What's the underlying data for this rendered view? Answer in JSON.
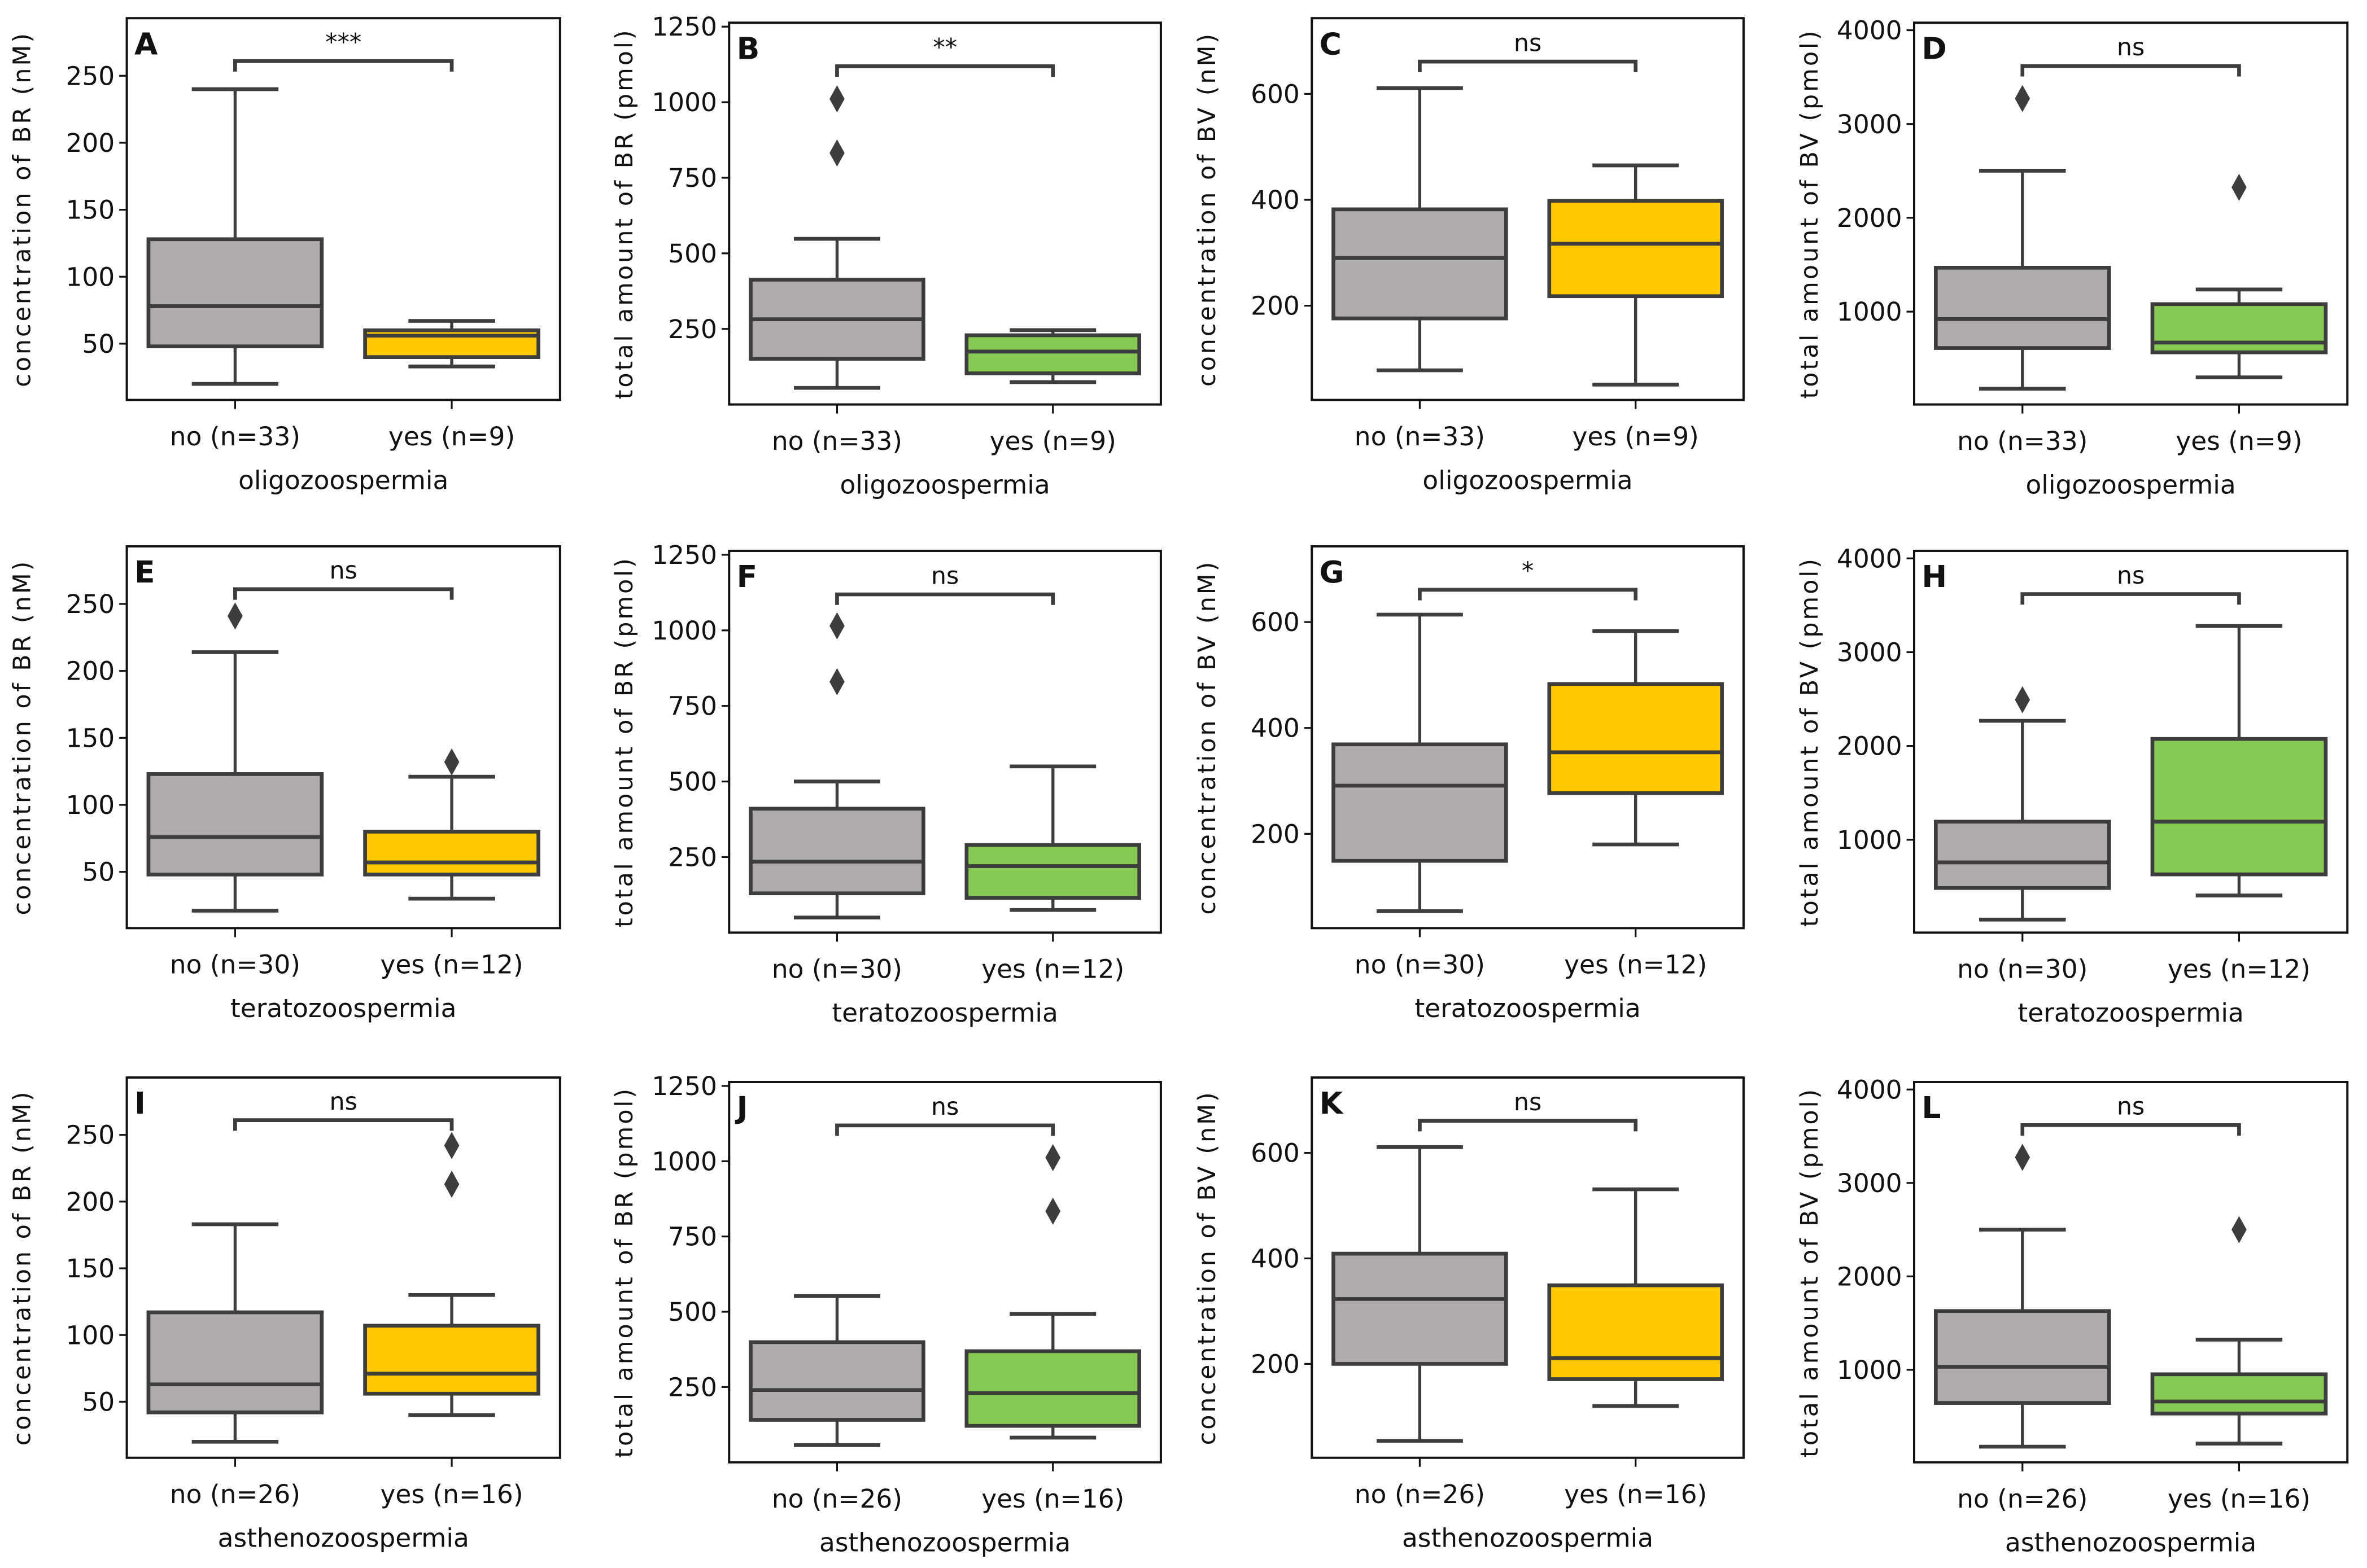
{
  "colors": {
    "no": "#b0acab",
    "yes_br": "#ffc800",
    "yes_bv": "#86c953",
    "line": "#3d3d3d"
  },
  "chart_data": [
    {
      "panel": "A",
      "type": "box",
      "ylabel": "concentration of BR (nM)",
      "xlabel": "oligozoospermia",
      "categories": [
        "no (n=33)",
        "yes (n=9)"
      ],
      "ylim": [
        8,
        293
      ],
      "yticks": [
        50,
        100,
        150,
        200,
        250
      ],
      "significance": "***",
      "bracket_y": 261,
      "boxes": [
        {
          "whislo": 20,
          "q1": 48,
          "med": 78,
          "q3": 128,
          "whishi": 240,
          "fliers": []
        },
        {
          "whislo": 33,
          "q1": 40,
          "med": 56,
          "q3": 60,
          "whishi": 67,
          "fliers": []
        }
      ]
    },
    {
      "panel": "B",
      "type": "box",
      "ylabel": "total amount of BR (pmol)",
      "xlabel": "oligozoospermia",
      "categories": [
        "no (n=33)",
        "yes (n=9)"
      ],
      "ylim": [
        0,
        1263
      ],
      "yticks": [
        250,
        500,
        750,
        1000,
        1250
      ],
      "significance": "**",
      "bracket_y": 1119,
      "boxes": [
        {
          "whislo": 55,
          "q1": 151,
          "med": 282,
          "q3": 413,
          "whishi": 548,
          "fliers": [
            1011,
            832
          ]
        },
        {
          "whislo": 74,
          "q1": 103,
          "med": 175,
          "q3": 229,
          "whishi": 246,
          "fliers": []
        }
      ]
    },
    {
      "panel": "C",
      "type": "box",
      "ylabel": "concentration of BV (nM)",
      "xlabel": "oligozoospermia",
      "categories": [
        "no (n=33)",
        "yes (n=9)"
      ],
      "ylim": [
        22,
        743
      ],
      "yticks": [
        200,
        400,
        600
      ],
      "significance": "ns",
      "bracket_y": 661,
      "boxes": [
        {
          "whislo": 78,
          "q1": 176,
          "med": 290,
          "q3": 382,
          "whishi": 611,
          "fliers": []
        },
        {
          "whislo": 51,
          "q1": 218,
          "med": 317,
          "q3": 398,
          "whishi": 465,
          "fliers": []
        }
      ]
    },
    {
      "panel": "D",
      "type": "box",
      "ylabel": "total amount of BV (pmol)",
      "xlabel": "oligozoospermia",
      "categories": [
        "no (n=33)",
        "yes (n=9)"
      ],
      "ylim": [
        10,
        4080
      ],
      "yticks": [
        1000,
        2000,
        3000,
        4000
      ],
      "significance": "ns",
      "bracket_y": 3619,
      "boxes": [
        {
          "whislo": 178,
          "q1": 612,
          "med": 920,
          "q3": 1468,
          "whishi": 2502,
          "fliers": [
            3272
          ]
        },
        {
          "whislo": 299,
          "q1": 566,
          "med": 670,
          "q3": 1080,
          "whishi": 1236,
          "fliers": [
            2325
          ]
        }
      ]
    },
    {
      "panel": "E",
      "type": "box",
      "ylabel": "concentration of BR (nM)",
      "xlabel": "teratozoospermia",
      "categories": [
        "no (n=30)",
        "yes (n=12)"
      ],
      "ylim": [
        8,
        293
      ],
      "yticks": [
        50,
        100,
        150,
        200,
        250
      ],
      "significance": "ns",
      "bracket_y": 261,
      "boxes": [
        {
          "whislo": 21,
          "q1": 48,
          "med": 76,
          "q3": 123,
          "whishi": 214,
          "fliers": [
            241
          ]
        },
        {
          "whislo": 30,
          "q1": 48,
          "med": 57,
          "q3": 80,
          "whishi": 121,
          "fliers": [
            132
          ]
        }
      ]
    },
    {
      "panel": "F",
      "type": "box",
      "ylabel": "total amount of BR (pmol)",
      "xlabel": "teratozoospermia",
      "categories": [
        "no (n=30)",
        "yes (n=12)"
      ],
      "ylim": [
        0,
        1263
      ],
      "yticks": [
        250,
        500,
        750,
        1000,
        1250
      ],
      "significance": "ns",
      "bracket_y": 1119,
      "boxes": [
        {
          "whislo": 50,
          "q1": 130,
          "med": 235,
          "q3": 410,
          "whishi": 500,
          "fliers": [
            1015,
            830
          ]
        },
        {
          "whislo": 75,
          "q1": 115,
          "med": 220,
          "q3": 290,
          "whishi": 550,
          "fliers": []
        }
      ]
    },
    {
      "panel": "G",
      "type": "box",
      "ylabel": "concentration of BV (nM)",
      "xlabel": "teratozoospermia",
      "categories": [
        "no (n=30)",
        "yes (n=12)"
      ],
      "ylim": [
        22,
        743
      ],
      "yticks": [
        200,
        400,
        600
      ],
      "significance": "*",
      "bracket_y": 661,
      "boxes": [
        {
          "whislo": 54,
          "q1": 149,
          "med": 291,
          "q3": 369,
          "whishi": 614,
          "fliers": []
        },
        {
          "whislo": 180,
          "q1": 277,
          "med": 354,
          "q3": 483,
          "whishi": 583,
          "fliers": []
        }
      ]
    },
    {
      "panel": "H",
      "type": "box",
      "ylabel": "total amount of BV (pmol)",
      "xlabel": "teratozoospermia",
      "categories": [
        "no (n=30)",
        "yes (n=12)"
      ],
      "ylim": [
        10,
        4080
      ],
      "yticks": [
        1000,
        2000,
        3000,
        4000
      ],
      "significance": "ns",
      "bracket_y": 3619,
      "boxes": [
        {
          "whislo": 149,
          "q1": 486,
          "med": 759,
          "q3": 1193,
          "whishi": 2268,
          "fliers": [
            2493
          ]
        },
        {
          "whislo": 406,
          "q1": 631,
          "med": 1193,
          "q3": 2075,
          "whishi": 3279,
          "fliers": []
        }
      ]
    },
    {
      "panel": "I",
      "type": "box",
      "ylabel": "concentration of BR (nM)",
      "xlabel": "asthenozoospermia",
      "categories": [
        "no (n=26)",
        "yes (n=16)"
      ],
      "ylim": [
        8,
        293
      ],
      "yticks": [
        50,
        100,
        150,
        200,
        250
      ],
      "significance": "ns",
      "bracket_y": 261,
      "boxes": [
        {
          "whislo": 20,
          "q1": 42,
          "med": 63,
          "q3": 117,
          "whishi": 183,
          "fliers": []
        },
        {
          "whislo": 40,
          "q1": 56,
          "med": 71,
          "q3": 107,
          "whishi": 130,
          "fliers": [
            242,
            213
          ]
        }
      ]
    },
    {
      "panel": "J",
      "type": "box",
      "ylabel": "total amount of BR (pmol)",
      "xlabel": "asthenozoospermia",
      "categories": [
        "no (n=26)",
        "yes (n=16)"
      ],
      "ylim": [
        0,
        1263
      ],
      "yticks": [
        250,
        500,
        750,
        1000,
        1250
      ],
      "significance": "ns",
      "bracket_y": 1119,
      "boxes": [
        {
          "whislo": 57,
          "q1": 141,
          "med": 240,
          "q3": 399,
          "whishi": 552,
          "fliers": []
        },
        {
          "whislo": 82,
          "q1": 121,
          "med": 230,
          "q3": 369,
          "whishi": 493,
          "fliers": [
            1012,
            834
          ]
        }
      ]
    },
    {
      "panel": "K",
      "type": "box",
      "ylabel": "concentration of BV (nM)",
      "xlabel": "asthenozoospermia",
      "categories": [
        "no (n=26)",
        "yes (n=16)"
      ],
      "ylim": [
        22,
        743
      ],
      "yticks": [
        200,
        400,
        600
      ],
      "significance": "ns",
      "bracket_y": 661,
      "boxes": [
        {
          "whislo": 54,
          "q1": 200,
          "med": 323,
          "q3": 409,
          "whishi": 611,
          "fliers": []
        },
        {
          "whislo": 120,
          "q1": 171,
          "med": 211,
          "q3": 349,
          "whishi": 531,
          "fliers": []
        }
      ]
    },
    {
      "panel": "L",
      "type": "box",
      "ylabel": "total amount of BV (pmol)",
      "xlabel": "asthenozoospermia",
      "categories": [
        "no (n=26)",
        "yes (n=16)"
      ],
      "ylim": [
        10,
        4080
      ],
      "yticks": [
        1000,
        2000,
        3000,
        4000
      ],
      "significance": "ns",
      "bracket_y": 3619,
      "boxes": [
        {
          "whislo": 177,
          "q1": 645,
          "med": 1032,
          "q3": 1629,
          "whishi": 2500,
          "fliers": [
            3274
          ]
        },
        {
          "whislo": 210,
          "q1": 532,
          "med": 661,
          "q3": 952,
          "whishi": 1323,
          "fliers": [
            2500
          ]
        }
      ]
    }
  ]
}
